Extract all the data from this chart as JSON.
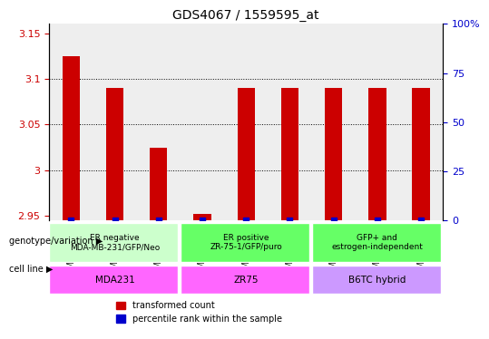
{
  "title": "GDS4067 / 1559595_at",
  "samples": [
    "GSM679722",
    "GSM679723",
    "GSM679724",
    "GSM679725",
    "GSM679726",
    "GSM679727",
    "GSM679719",
    "GSM679720",
    "GSM679721"
  ],
  "transformed_counts": [
    3.125,
    3.09,
    3.025,
    2.952,
    3.09,
    3.09,
    3.09,
    3.09,
    3.09
  ],
  "percentile_ranks": [
    0.185,
    0.185,
    0.175,
    0.135,
    0.185,
    0.185,
    0.195,
    0.195,
    0.185
  ],
  "ylim_left": [
    2.945,
    3.16
  ],
  "ylim_right": [
    0,
    100
  ],
  "yticks_left": [
    2.95,
    3.0,
    3.05,
    3.1,
    3.15
  ],
  "yticks_right": [
    0,
    25,
    50,
    75,
    100
  ],
  "ytick_labels_left": [
    "2.95",
    "3",
    "3.05",
    "3.1",
    "3.15"
  ],
  "ytick_labels_right": [
    "0",
    "25",
    "50",
    "75",
    "100%"
  ],
  "grid_values": [
    3.0,
    3.05,
    3.1
  ],
  "bar_color": "#cc0000",
  "dot_color": "#0000cc",
  "base_value": 2.945,
  "genotype_groups": [
    {
      "label": "ER negative\nMDA-MB-231/GFP/Neo",
      "start": 0,
      "end": 3,
      "color": "#ccffcc"
    },
    {
      "label": "ER positive\nZR-75-1/GFP/puro",
      "start": 3,
      "end": 6,
      "color": "#66ff66"
    },
    {
      "label": "GFP+ and\nestrogen-independent",
      "start": 6,
      "end": 9,
      "color": "#66ff66"
    }
  ],
  "cell_line_groups": [
    {
      "label": "MDA231",
      "start": 0,
      "end": 3,
      "color": "#ff66ff"
    },
    {
      "label": "ZR75",
      "start": 3,
      "end": 6,
      "color": "#ff66ff"
    },
    {
      "label": "B6TC hybrid",
      "start": 6,
      "end": 9,
      "color": "#cc99ff"
    }
  ],
  "legend_items": [
    {
      "label": "transformed count",
      "color": "#cc0000"
    },
    {
      "label": "percentile rank within the sample",
      "color": "#0000cc"
    }
  ],
  "left_label": "genotype/variation",
  "right_label": "cell line",
  "tick_color_left": "#cc0000",
  "tick_color_right": "#0000cc"
}
